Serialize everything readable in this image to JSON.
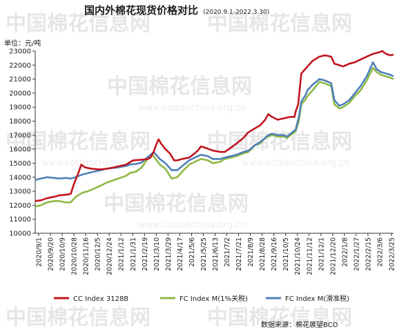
{
  "chart_data": {
    "type": "line",
    "title": "国内外棉花现货价格对比",
    "subtitle": "(2020.9.1-2022.3.30)",
    "ylabel": "单位：元/吨",
    "ylim": [
      10000,
      23000
    ],
    "ytick_step": 1000,
    "x_range": [
      "2020-09-01",
      "2022-03-30"
    ],
    "xticks": [
      "2020/9/1",
      "2020/9/20",
      "2020/10/9",
      "2020/10/28",
      "2020/11/16",
      "2020/12/5",
      "2020/12/24",
      "2021/1/12",
      "2021/1/31",
      "2021/2/19",
      "2021/3/10",
      "2021/3/29",
      "2021/4/17",
      "2021/5/6",
      "2021/5/25",
      "2021/6/13",
      "2021/7/2",
      "2021/7/21",
      "2021/8/9",
      "2021/8/28",
      "2021/9/16",
      "2021/10/5",
      "2021/10/24",
      "2021/11/12",
      "2021/12/1",
      "2021/12/20",
      "2022/1/8",
      "2022/1/27",
      "2022/2/15",
      "2022/3/6",
      "2022/3/25"
    ],
    "grid": false,
    "legend_position": "bottom",
    "series": [
      {
        "name": "CC Index 3128B",
        "color": "#c0141c",
        "points": [
          [
            "2020-09-01",
            12300
          ],
          [
            "2020-09-10",
            12350
          ],
          [
            "2020-09-20",
            12500
          ],
          [
            "2020-10-01",
            12600
          ],
          [
            "2020-10-09",
            12700
          ],
          [
            "2020-10-20",
            12750
          ],
          [
            "2020-10-28",
            12800
          ],
          [
            "2020-11-02",
            13500
          ],
          [
            "2020-11-10",
            14400
          ],
          [
            "2020-11-14",
            14900
          ],
          [
            "2020-11-20",
            14700
          ],
          [
            "2020-12-01",
            14600
          ],
          [
            "2020-12-15",
            14550
          ],
          [
            "2020-12-24",
            14600
          ],
          [
            "2021-01-05",
            14700
          ],
          [
            "2021-01-15",
            14800
          ],
          [
            "2021-01-25",
            14900
          ],
          [
            "2021-02-05",
            15200
          ],
          [
            "2021-02-19",
            15250
          ],
          [
            "2021-03-01",
            15300
          ],
          [
            "2021-03-05",
            15400
          ],
          [
            "2021-03-10",
            15800
          ],
          [
            "2021-03-14",
            16300
          ],
          [
            "2021-03-18",
            16700
          ],
          [
            "2021-03-22",
            16400
          ],
          [
            "2021-03-29",
            16000
          ],
          [
            "2021-04-05",
            15700
          ],
          [
            "2021-04-12",
            15200
          ],
          [
            "2021-04-17",
            15200
          ],
          [
            "2021-04-25",
            15300
          ],
          [
            "2021-05-06",
            15400
          ],
          [
            "2021-05-12",
            15600
          ],
          [
            "2021-05-20",
            15900
          ],
          [
            "2021-05-25",
            16200
          ],
          [
            "2021-06-01",
            16100
          ],
          [
            "2021-06-13",
            15900
          ],
          [
            "2021-06-25",
            15800
          ],
          [
            "2021-07-02",
            15800
          ],
          [
            "2021-07-12",
            16100
          ],
          [
            "2021-07-21",
            16400
          ],
          [
            "2021-08-01",
            16800
          ],
          [
            "2021-08-09",
            17200
          ],
          [
            "2021-08-20",
            17500
          ],
          [
            "2021-08-28",
            17700
          ],
          [
            "2021-09-05",
            18100
          ],
          [
            "2021-09-10",
            18500
          ],
          [
            "2021-09-16",
            18300
          ],
          [
            "2021-09-25",
            18100
          ],
          [
            "2021-10-05",
            18200
          ],
          [
            "2021-10-15",
            18300
          ],
          [
            "2021-10-22",
            18300
          ],
          [
            "2021-10-24",
            18700
          ],
          [
            "2021-10-28",
            19200
          ],
          [
            "2021-11-02",
            21400
          ],
          [
            "2021-11-08",
            21700
          ],
          [
            "2021-11-12",
            21900
          ],
          [
            "2021-11-20",
            22300
          ],
          [
            "2021-12-01",
            22600
          ],
          [
            "2021-12-10",
            22700
          ],
          [
            "2021-12-20",
            22600
          ],
          [
            "2021-12-25",
            22100
          ],
          [
            "2022-01-08",
            21900
          ],
          [
            "2022-01-18",
            22100
          ],
          [
            "2022-01-27",
            22200
          ],
          [
            "2022-02-05",
            22400
          ],
          [
            "2022-02-15",
            22600
          ],
          [
            "2022-02-25",
            22800
          ],
          [
            "2022-03-06",
            22900
          ],
          [
            "2022-03-12",
            23000
          ],
          [
            "2022-03-18",
            22800
          ],
          [
            "2022-03-25",
            22700
          ],
          [
            "2022-03-30",
            22750
          ]
        ]
      },
      {
        "name": "FC Index M(1%关税)",
        "color": "#8db844",
        "points": [
          [
            "2020-09-01",
            11900
          ],
          [
            "2020-09-10",
            12000
          ],
          [
            "2020-09-20",
            12200
          ],
          [
            "2020-10-01",
            12300
          ],
          [
            "2020-10-09",
            12300
          ],
          [
            "2020-10-20",
            12200
          ],
          [
            "2020-10-28",
            12200
          ],
          [
            "2020-11-05",
            12600
          ],
          [
            "2020-11-16",
            12900
          ],
          [
            "2020-11-25",
            13000
          ],
          [
            "2020-12-05",
            13200
          ],
          [
            "2020-12-15",
            13400
          ],
          [
            "2020-12-24",
            13600
          ],
          [
            "2021-01-12",
            13900
          ],
          [
            "2021-01-25",
            14100
          ],
          [
            "2021-01-31",
            14300
          ],
          [
            "2021-02-10",
            14400
          ],
          [
            "2021-02-19",
            14700
          ],
          [
            "2021-02-25",
            15100
          ],
          [
            "2021-03-05",
            15600
          ],
          [
            "2021-03-10",
            15500
          ],
          [
            "2021-03-20",
            14900
          ],
          [
            "2021-03-29",
            14600
          ],
          [
            "2021-04-08",
            13900
          ],
          [
            "2021-04-17",
            14000
          ],
          [
            "2021-04-25",
            14400
          ],
          [
            "2021-05-06",
            14900
          ],
          [
            "2021-05-15",
            15100
          ],
          [
            "2021-05-25",
            15300
          ],
          [
            "2021-06-05",
            15200
          ],
          [
            "2021-06-13",
            15000
          ],
          [
            "2021-06-25",
            15100
          ],
          [
            "2021-07-02",
            15300
          ],
          [
            "2021-07-12",
            15400
          ],
          [
            "2021-07-21",
            15500
          ],
          [
            "2021-08-01",
            15700
          ],
          [
            "2021-08-09",
            15800
          ],
          [
            "2021-08-20",
            16300
          ],
          [
            "2021-08-28",
            16400
          ],
          [
            "2021-09-05",
            16800
          ],
          [
            "2021-09-10",
            16900
          ],
          [
            "2021-09-16",
            17000
          ],
          [
            "2021-09-25",
            16900
          ],
          [
            "2021-10-05",
            16900
          ],
          [
            "2021-10-10",
            16800
          ],
          [
            "2021-10-24",
            17300
          ],
          [
            "2021-10-29",
            18000
          ],
          [
            "2021-11-02",
            19200
          ],
          [
            "2021-11-08",
            19500
          ],
          [
            "2021-11-12",
            19800
          ],
          [
            "2021-11-20",
            20200
          ],
          [
            "2021-12-01",
            20800
          ],
          [
            "2021-12-10",
            20700
          ],
          [
            "2021-12-20",
            20500
          ],
          [
            "2021-12-25",
            19200
          ],
          [
            "2022-01-02",
            18900
          ],
          [
            "2022-01-08",
            19000
          ],
          [
            "2022-01-18",
            19300
          ],
          [
            "2022-01-27",
            19800
          ],
          [
            "2022-02-05",
            20200
          ],
          [
            "2022-02-15",
            20900
          ],
          [
            "2022-02-25",
            21800
          ],
          [
            "2022-03-03",
            21500
          ],
          [
            "2022-03-10",
            21300
          ],
          [
            "2022-03-18",
            21200
          ],
          [
            "2022-03-25",
            21100
          ],
          [
            "2022-03-30",
            21000
          ]
        ]
      },
      {
        "name": "FC Index M(滑准税)",
        "color": "#4f7fb8",
        "points": [
          [
            "2020-09-01",
            13800
          ],
          [
            "2020-09-10",
            13900
          ],
          [
            "2020-09-20",
            14000
          ],
          [
            "2020-10-01",
            13950
          ],
          [
            "2020-10-09",
            13900
          ],
          [
            "2020-10-20",
            13950
          ],
          [
            "2020-10-28",
            13900
          ],
          [
            "2020-11-05",
            14000
          ],
          [
            "2020-11-16",
            14200
          ],
          [
            "2020-11-25",
            14300
          ],
          [
            "2020-12-05",
            14400
          ],
          [
            "2020-12-15",
            14500
          ],
          [
            "2020-12-24",
            14600
          ],
          [
            "2021-01-12",
            14700
          ],
          [
            "2021-01-25",
            14800
          ],
          [
            "2021-01-31",
            14900
          ],
          [
            "2021-02-10",
            14950
          ],
          [
            "2021-02-19",
            15050
          ],
          [
            "2021-02-25",
            15300
          ],
          [
            "2021-03-05",
            15600
          ],
          [
            "2021-03-10",
            15800
          ],
          [
            "2021-03-20",
            15300
          ],
          [
            "2021-03-29",
            15000
          ],
          [
            "2021-04-08",
            14500
          ],
          [
            "2021-04-17",
            14500
          ],
          [
            "2021-04-25",
            14800
          ],
          [
            "2021-05-06",
            15200
          ],
          [
            "2021-05-15",
            15400
          ],
          [
            "2021-05-25",
            15600
          ],
          [
            "2021-06-05",
            15500
          ],
          [
            "2021-06-13",
            15300
          ],
          [
            "2021-06-25",
            15300
          ],
          [
            "2021-07-02",
            15400
          ],
          [
            "2021-07-12",
            15500
          ],
          [
            "2021-07-21",
            15600
          ],
          [
            "2021-08-01",
            15800
          ],
          [
            "2021-08-09",
            15900
          ],
          [
            "2021-08-20",
            16300
          ],
          [
            "2021-08-28",
            16500
          ],
          [
            "2021-09-05",
            16800
          ],
          [
            "2021-09-10",
            17000
          ],
          [
            "2021-09-16",
            17100
          ],
          [
            "2021-09-25",
            17000
          ],
          [
            "2021-10-05",
            17000
          ],
          [
            "2021-10-10",
            16900
          ],
          [
            "2021-10-24",
            17400
          ],
          [
            "2021-10-29",
            18300
          ],
          [
            "2021-11-02",
            19400
          ],
          [
            "2021-11-08",
            19800
          ],
          [
            "2021-11-12",
            20200
          ],
          [
            "2021-11-20",
            20600
          ],
          [
            "2021-12-01",
            21000
          ],
          [
            "2021-12-10",
            20900
          ],
          [
            "2021-12-20",
            20700
          ],
          [
            "2021-12-25",
            19500
          ],
          [
            "2022-01-02",
            19100
          ],
          [
            "2022-01-08",
            19200
          ],
          [
            "2022-01-18",
            19500
          ],
          [
            "2022-01-27",
            20000
          ],
          [
            "2022-02-05",
            20500
          ],
          [
            "2022-02-15",
            21200
          ],
          [
            "2022-02-25",
            22200
          ],
          [
            "2022-03-03",
            21700
          ],
          [
            "2022-03-10",
            21500
          ],
          [
            "2022-03-18",
            21400
          ],
          [
            "2022-03-25",
            21300
          ],
          [
            "2022-03-30",
            21200
          ]
        ]
      }
    ],
    "source_note": "数据来源：棉花展望BCO"
  },
  "watermark": {
    "text": "中国棉花信息网",
    "url": "www.cottonchina.org.cn"
  }
}
